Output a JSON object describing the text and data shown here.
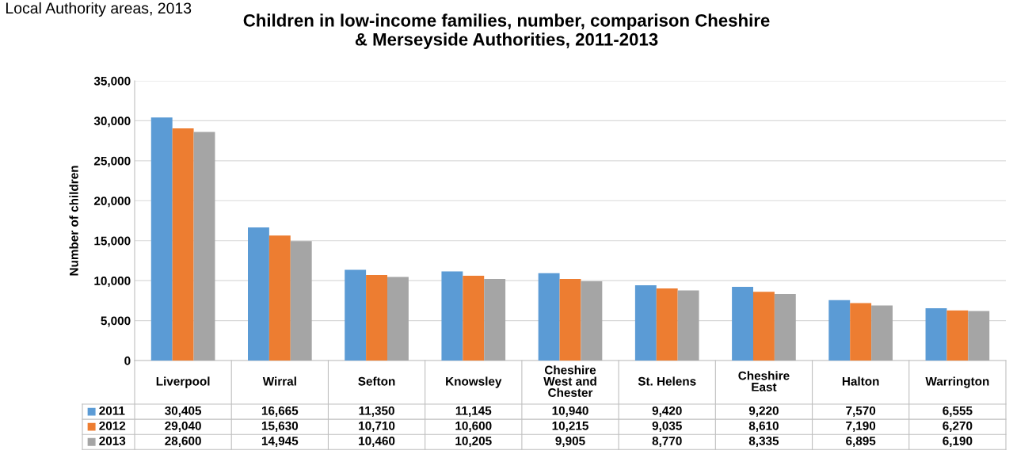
{
  "chart_data": {
    "type": "bar",
    "title": "Children in low-income families, number, comparison Cheshire\n& Merseyside Authorities, 2011-2013",
    "ylabel": "Number of children",
    "annotations": [
      "Local Authority areas, 2013"
    ],
    "categories": [
      "Liverpool",
      "Wirral",
      "Sefton",
      "Knowsley",
      "Cheshire\nWest and\nChester",
      "St. Helens",
      "Cheshire\nEast",
      "Halton",
      "Warrington"
    ],
    "series": [
      {
        "name": "2011",
        "color": "#5b9bd5",
        "values": [
          30405,
          16665,
          11350,
          11145,
          10940,
          9420,
          9220,
          7570,
          6555
        ],
        "value_labels": [
          "30,405",
          "16,665",
          "11,350",
          "11,145",
          "10,940",
          "9,420",
          "9,220",
          "7,570",
          "6,555"
        ]
      },
      {
        "name": "2012",
        "color": "#ed7d31",
        "values": [
          29040,
          15630,
          10710,
          10600,
          10215,
          9035,
          8610,
          7190,
          6270
        ],
        "value_labels": [
          "29,040",
          "15,630",
          "10,710",
          "10,600",
          "10,215",
          "9,035",
          "8,610",
          "7,190",
          "6,270"
        ]
      },
      {
        "name": "2013",
        "color": "#a5a5a5",
        "values": [
          28600,
          14945,
          10460,
          10205,
          9905,
          8770,
          8335,
          6895,
          6190
        ],
        "value_labels": [
          "28,600",
          "14,945",
          "10,460",
          "10,205",
          "9,905",
          "8,770",
          "8,335",
          "6,895",
          "6,190"
        ]
      }
    ],
    "ylim": [
      0,
      35000
    ],
    "yticks": [
      {
        "value": 0,
        "label": "0"
      },
      {
        "value": 5000,
        "label": "5,000"
      },
      {
        "value": 10000,
        "label": "10,000"
      },
      {
        "value": 15000,
        "label": "15,000"
      },
      {
        "value": 20000,
        "label": "20,000"
      },
      {
        "value": 25000,
        "label": "25,000"
      },
      {
        "value": 30000,
        "label": "30,000"
      },
      {
        "value": 35000,
        "label": "35,000"
      }
    ],
    "grid": "y",
    "legend": "bottom"
  }
}
